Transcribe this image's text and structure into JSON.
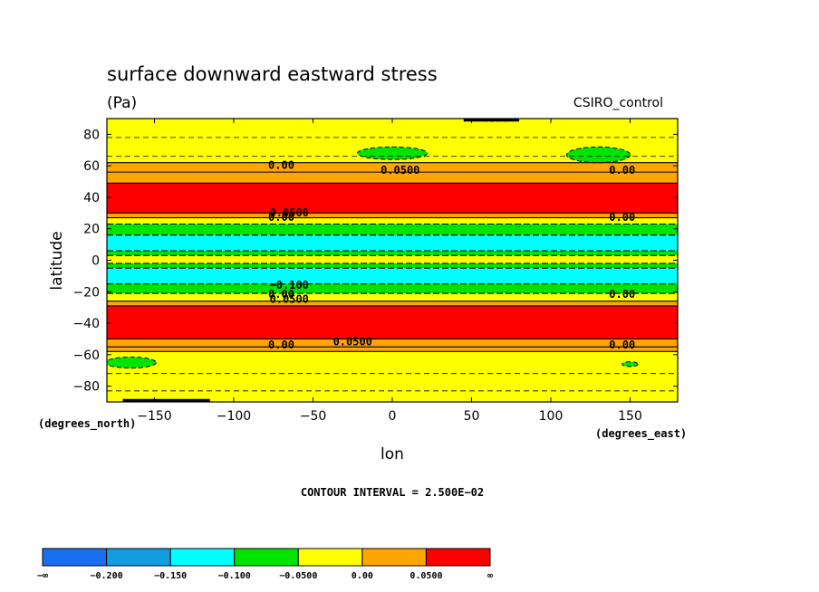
{
  "chart_data": {
    "type": "heatmap",
    "title": "surface downward eastward stress",
    "units": "(Pa)",
    "source_label": "CSIRO_control",
    "xlabel": "lon",
    "ylabel": "latitude",
    "x_units": "(degrees_east)",
    "y_units": "(degrees_north)",
    "xlim": [
      -180,
      180
    ],
    "ylim": [
      -90,
      90
    ],
    "x_ticks": [
      -150,
      -100,
      -50,
      0,
      50,
      100,
      150
    ],
    "y_ticks": [
      80,
      60,
      40,
      20,
      0,
      -20,
      -40,
      -60,
      -80
    ],
    "x_tick_labels": [
      "−150",
      "−100",
      "−50",
      "0",
      "50",
      "100",
      "150"
    ],
    "y_tick_labels": [
      "80",
      "60",
      "40",
      "20",
      "0",
      "−20",
      "−40",
      "−60",
      "−80"
    ],
    "contour_interval_label": "CONTOUR INTERVAL = 2.500E−02",
    "colorbar": {
      "colors": [
        "#1a6ef0",
        "#139de0",
        "#00ffff",
        "#00e400",
        "#ffff00",
        "#ffa500",
        "#ff0000"
      ],
      "labels": [
        "−∞",
        "−0.200",
        "−0.150",
        "−0.100",
        "−0.0500",
        "0.00",
        "0.0500",
        "∞"
      ]
    },
    "latitude_bands": [
      {
        "lat_from": 90,
        "lat_to": 62,
        "class": "yellow"
      },
      {
        "lat_from": 62,
        "lat_to": 56,
        "class": "orange"
      },
      {
        "lat_from": 56,
        "lat_to": 49,
        "class": "orange2"
      },
      {
        "lat_from": 49,
        "lat_to": 30,
        "class": "red"
      },
      {
        "lat_from": 30,
        "lat_to": 27,
        "class": "orange"
      },
      {
        "lat_from": 27,
        "lat_to": 23,
        "class": "yellow"
      },
      {
        "lat_from": 23,
        "lat_to": 16,
        "class": "green"
      },
      {
        "lat_from": 16,
        "lat_to": 6,
        "class": "cyan"
      },
      {
        "lat_from": 6,
        "lat_to": 3,
        "class": "green"
      },
      {
        "lat_from": 3,
        "lat_to": -2,
        "class": "yellow"
      },
      {
        "lat_from": -2,
        "lat_to": -5,
        "class": "green"
      },
      {
        "lat_from": -5,
        "lat_to": -15,
        "class": "cyan"
      },
      {
        "lat_from": -15,
        "lat_to": -21,
        "class": "green"
      },
      {
        "lat_from": -21,
        "lat_to": -26,
        "class": "yellow"
      },
      {
        "lat_from": -26,
        "lat_to": -29,
        "class": "orange"
      },
      {
        "lat_from": -29,
        "lat_to": -50,
        "class": "red"
      },
      {
        "lat_from": -50,
        "lat_to": -55,
        "class": "orange2"
      },
      {
        "lat_from": -55,
        "lat_to": -58,
        "class": "orange"
      },
      {
        "lat_from": -58,
        "lat_to": -90,
        "class": "yellow"
      }
    ],
    "blobs": [
      {
        "lon": 0,
        "lat": 68,
        "rlon": 22,
        "rlat": 4,
        "class": "green"
      },
      {
        "lon": 130,
        "lat": 67,
        "rlon": 20,
        "rlat": 5,
        "class": "green"
      },
      {
        "lon": -165,
        "lat": -65,
        "rlon": 16,
        "rlat": 3.5,
        "class": "green"
      },
      {
        "lon": 150,
        "lat": -66,
        "rlon": 5,
        "rlat": 1.5,
        "class": "green"
      }
    ],
    "contour_labels": [
      {
        "text": "0.00",
        "lon": -70,
        "lat": 58
      },
      {
        "text": "0.0500",
        "lon": 5,
        "lat": 55
      },
      {
        "text": "0.00",
        "lon": 145,
        "lat": 55
      },
      {
        "text": "0.00",
        "lon": 65,
        "lat": 88
      },
      {
        "text": "0.0500",
        "lon": -65,
        "lat": 28
      },
      {
        "text": "0.00",
        "lon": -70,
        "lat": 25
      },
      {
        "text": "0.00",
        "lon": 145,
        "lat": 25
      },
      {
        "text": "−0.100",
        "lon": -65,
        "lat": -18
      },
      {
        "text": "0.00",
        "lon": -70,
        "lat": -24
      },
      {
        "text": "0.0500",
        "lon": -65,
        "lat": -27
      },
      {
        "text": "0.00",
        "lon": 145,
        "lat": -24
      },
      {
        "text": "0.0500",
        "lon": -25,
        "lat": -54
      },
      {
        "text": "0.00",
        "lon": -70,
        "lat": -56
      },
      {
        "text": "0.00",
        "lon": 145,
        "lat": -56
      }
    ]
  }
}
